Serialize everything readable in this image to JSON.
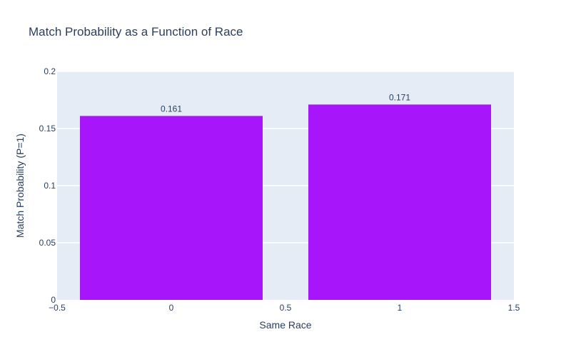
{
  "chart_data": {
    "type": "bar",
    "title": "Match Probability as a Function of Race",
    "xlabel": "Same Race",
    "ylabel": "Match Probability (P=1)",
    "categories": [
      0,
      1
    ],
    "values": [
      0.161,
      0.171
    ],
    "value_labels": [
      "0.161",
      "0.171"
    ],
    "xlim": [
      -0.5,
      1.5
    ],
    "ylim": [
      0,
      0.2
    ],
    "x_ticks": [
      -0.5,
      0,
      0.5,
      1,
      1.5
    ],
    "x_tick_labels": [
      "−0.5",
      "0",
      "0.5",
      "1",
      "1.5"
    ],
    "y_ticks": [
      0,
      0.05,
      0.1,
      0.15,
      0.2
    ],
    "y_tick_labels": [
      "0",
      "0.05",
      "0.1",
      "0.15",
      "0.2"
    ],
    "bar_width": 0.8,
    "grid": true,
    "colors": {
      "bar": "#a715fa",
      "plot_background": "#e5ecf6",
      "grid": "#ffffff",
      "text": "#2a3f5f"
    }
  }
}
